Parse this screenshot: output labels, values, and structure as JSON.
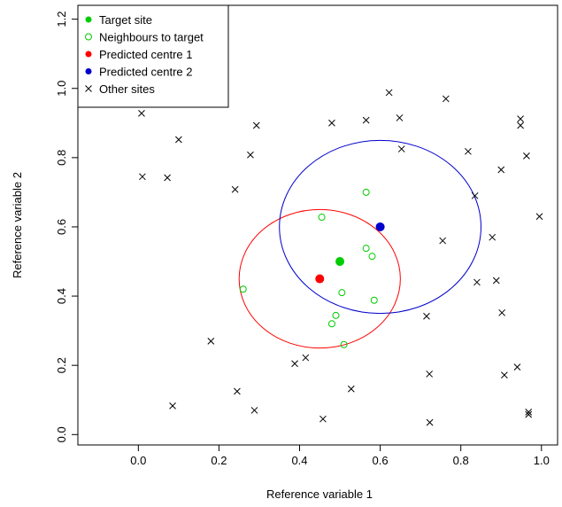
{
  "chart_data": {
    "type": "scatter",
    "title": "",
    "xlabel": "Reference variable 1",
    "ylabel": "Reference variable 2",
    "xlim": [
      -0.15,
      1.04
    ],
    "ylim": [
      -0.03,
      1.24
    ],
    "xticks": [
      0.0,
      0.2,
      0.4,
      0.6,
      0.8,
      1.0
    ],
    "xtick_labels": [
      "0.0",
      "0.2",
      "0.4",
      "0.6",
      "0.8",
      "1.0"
    ],
    "yticks": [
      0.0,
      0.2,
      0.4,
      0.6,
      0.8,
      1.0,
      1.2
    ],
    "ytick_labels": [
      "0.0",
      "0.2",
      "0.4",
      "0.6",
      "0.8",
      "1.0",
      "1.2"
    ],
    "grid": false,
    "legend_position": "top-left",
    "legend": [
      {
        "label": "Target site",
        "symbol": "filled-circle",
        "color": "#00cc00"
      },
      {
        "label": "Neighbours to target",
        "symbol": "open-circle",
        "color": "#00cc00"
      },
      {
        "label": "Predicted centre 1",
        "symbol": "filled-circle",
        "color": "#ff0000"
      },
      {
        "label": "Predicted centre 2",
        "symbol": "filled-circle",
        "color": "#0000cc"
      },
      {
        "label": "Other sites",
        "symbol": "cross",
        "color": "#000000"
      }
    ],
    "series": [
      {
        "name": "Target site",
        "symbol": "filled-circle",
        "color": "#00cc00",
        "points": [
          [
            0.5,
            0.5
          ]
        ]
      },
      {
        "name": "Neighbours to target",
        "symbol": "open-circle",
        "color": "#00cc00",
        "points": [
          [
            0.26,
            0.42
          ],
          [
            0.455,
            0.628
          ],
          [
            0.565,
            0.7
          ],
          [
            0.565,
            0.538
          ],
          [
            0.58,
            0.515
          ],
          [
            0.505,
            0.41
          ],
          [
            0.585,
            0.388
          ],
          [
            0.49,
            0.344
          ],
          [
            0.48,
            0.32
          ],
          [
            0.51,
            0.26
          ]
        ]
      },
      {
        "name": "Predicted centre 1",
        "symbol": "filled-circle",
        "color": "#ff0000",
        "points": [
          [
            0.45,
            0.45
          ]
        ]
      },
      {
        "name": "Predicted centre 2",
        "symbol": "filled-circle",
        "color": "#0000cc",
        "points": [
          [
            0.6,
            0.6
          ]
        ]
      },
      {
        "name": "Other sites",
        "symbol": "cross",
        "color": "#000000",
        "points": [
          [
            0.008,
            0.928
          ],
          [
            0.1,
            0.852
          ],
          [
            0.01,
            0.745
          ],
          [
            0.072,
            0.742
          ],
          [
            0.24,
            0.708
          ],
          [
            0.278,
            0.808
          ],
          [
            0.293,
            0.893
          ],
          [
            0.48,
            0.9
          ],
          [
            0.565,
            0.908
          ],
          [
            0.622,
            0.988
          ],
          [
            0.648,
            0.915
          ],
          [
            0.653,
            0.825
          ],
          [
            0.763,
            0.97
          ],
          [
            0.818,
            0.818
          ],
          [
            0.9,
            0.765
          ],
          [
            0.948,
            0.912
          ],
          [
            0.948,
            0.893
          ],
          [
            0.963,
            0.805
          ],
          [
            0.835,
            0.69
          ],
          [
            0.995,
            0.63
          ],
          [
            0.755,
            0.56
          ],
          [
            0.878,
            0.57
          ],
          [
            0.84,
            0.44
          ],
          [
            0.888,
            0.445
          ],
          [
            0.902,
            0.352
          ],
          [
            0.715,
            0.342
          ],
          [
            0.18,
            0.27
          ],
          [
            0.415,
            0.222
          ],
          [
            0.388,
            0.205
          ],
          [
            0.245,
            0.125
          ],
          [
            0.528,
            0.132
          ],
          [
            0.722,
            0.175
          ],
          [
            0.908,
            0.172
          ],
          [
            0.94,
            0.195
          ],
          [
            0.085,
            0.083
          ],
          [
            0.288,
            0.07
          ],
          [
            0.458,
            0.045
          ],
          [
            0.723,
            0.035
          ],
          [
            0.968,
            0.065
          ],
          [
            0.968,
            0.058
          ]
        ]
      }
    ],
    "circles": [
      {
        "name": "Predicted centre 1 radius",
        "cx": 0.45,
        "cy": 0.45,
        "r": 0.2,
        "color": "#ff0000"
      },
      {
        "name": "Predicted centre 2 radius",
        "cx": 0.6,
        "cy": 0.6,
        "r": 0.25,
        "color": "#0000cc"
      }
    ]
  }
}
